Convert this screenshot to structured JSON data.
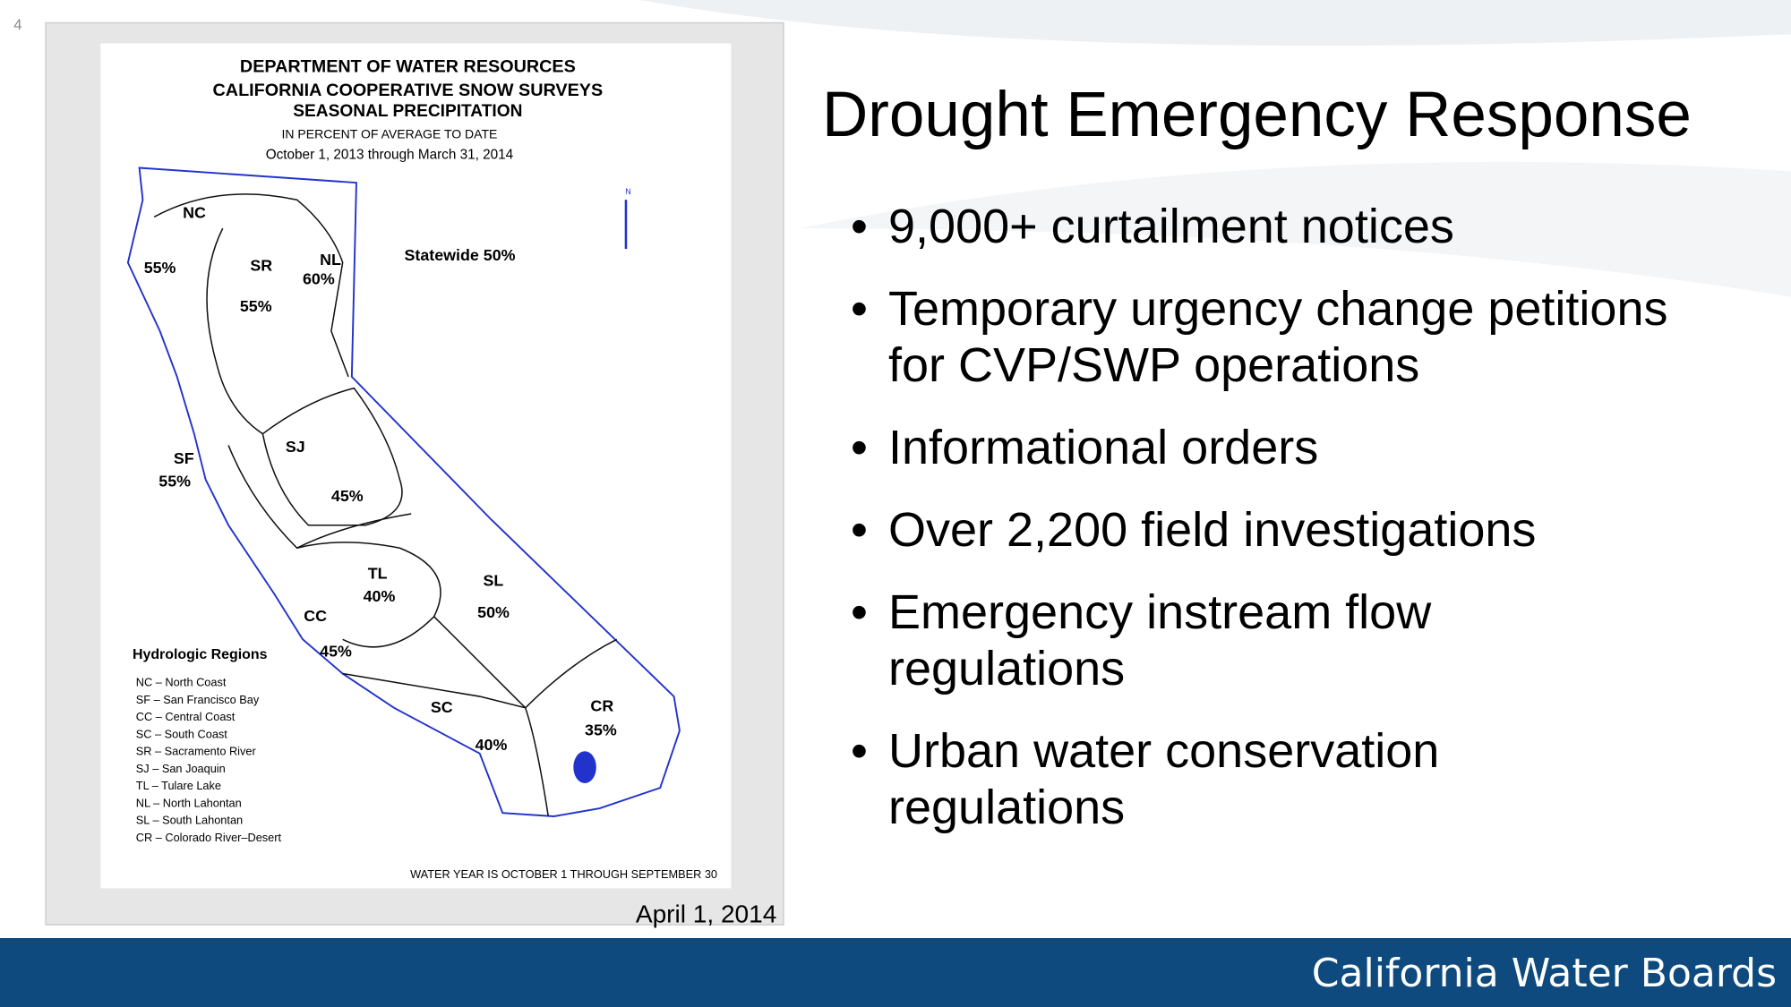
{
  "slide_number": "4",
  "map": {
    "header": [
      "DEPARTMENT OF WATER RESOURCES",
      "CALIFORNIA COOPERATIVE SNOW SURVEYS",
      "SEASONAL PRECIPITATION",
      "IN PERCENT OF AVERAGE TO DATE",
      "October 1, 2013 through March 31, 2014"
    ],
    "north": "N",
    "statewide": "Statewide 50%",
    "regions": [
      {
        "code": "NC",
        "percent": "55%"
      },
      {
        "code": "SR",
        "percent": "55%"
      },
      {
        "code": "NL",
        "percent": "60%"
      },
      {
        "code": "SF",
        "percent": "55%"
      },
      {
        "code": "SJ",
        "percent": "45%"
      },
      {
        "code": "TL",
        "percent": "40%"
      },
      {
        "code": "SL",
        "percent": "50%"
      },
      {
        "code": "CC",
        "percent": "45%"
      },
      {
        "code": "SC",
        "percent": "40%"
      },
      {
        "code": "CR",
        "percent": "35%"
      }
    ],
    "legend": {
      "title": "Hydrologic Regions",
      "entries": [
        "NC – North Coast",
        "SF – San Francisco Bay",
        "CC – Central Coast",
        "SC – South Coast",
        "SR – Sacramento River",
        "SJ – San Joaquin",
        "TL – Tulare Lake",
        "NL – North Lahontan",
        "SL – South Lahontan",
        "CR – Colorado River–Desert"
      ]
    },
    "footnote": "WATER YEAR IS OCTOBER 1 THROUGH SEPTEMBER 30"
  },
  "caption": "April 1, 2014",
  "title": "Drought Emergency Response",
  "bullets": [
    "9,000+ curtailment notices",
    "Temporary urgency change petitions for CVP/SWP operations",
    "Informational orders",
    "Over 2,200 field investigations",
    "Emergency instream flow regulations",
    "Urban water conservation regulations"
  ],
  "footer": "California Water Boards"
}
